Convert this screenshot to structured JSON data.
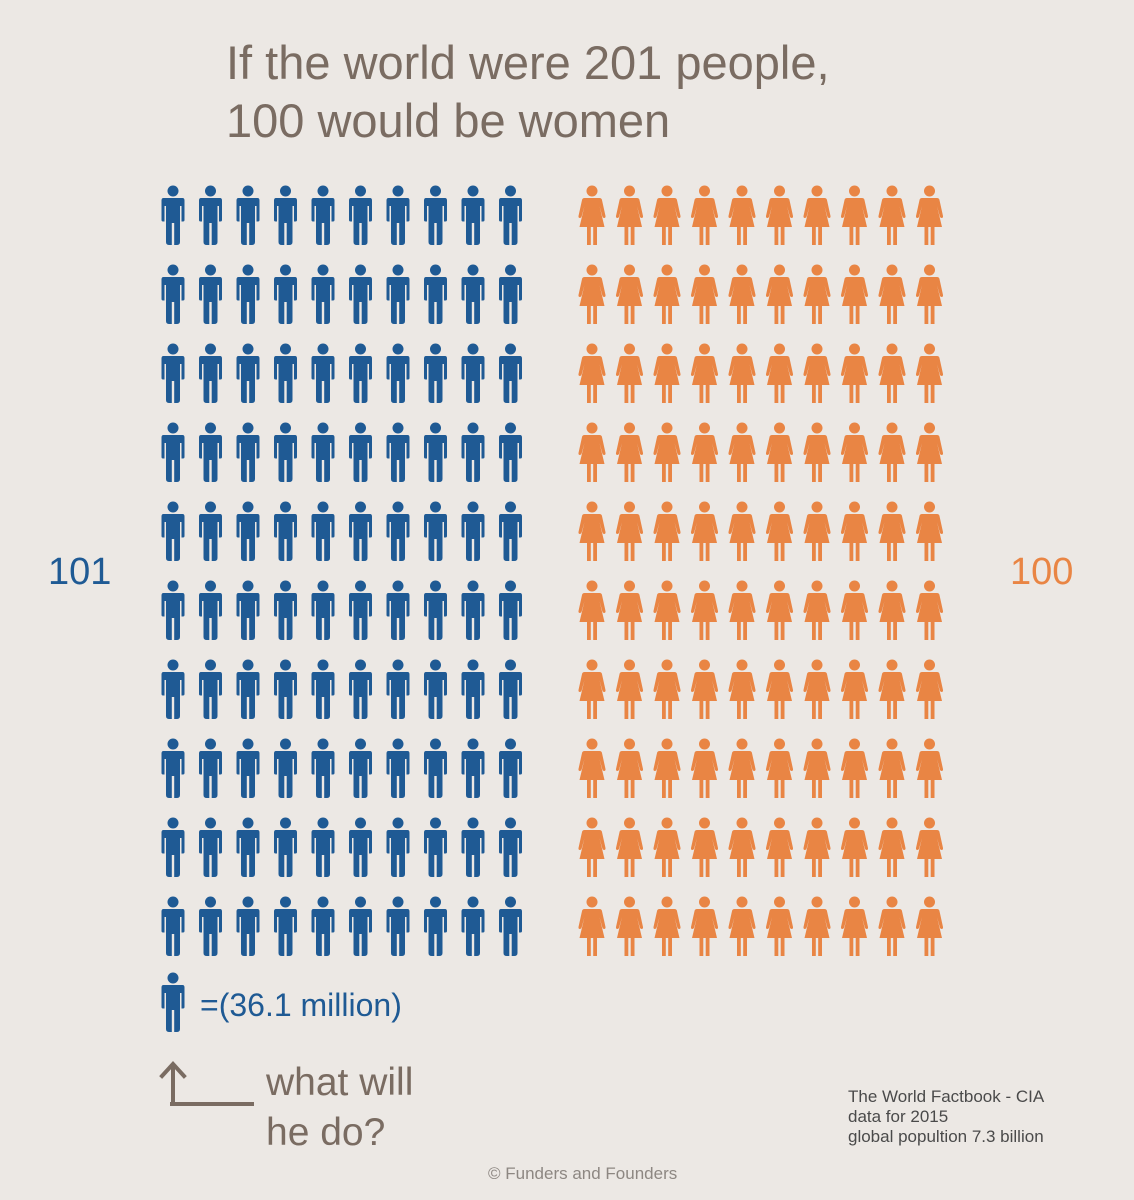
{
  "title": "If the world were 201 people,\n100 would be women",
  "men_count_label": "101",
  "women_count_label": "100",
  "unit_label": "=(36.1 million)",
  "question": "what will\nhe do?",
  "source_text": "The World Factbook - CIA\ndata for 2015\nglobal popultion 7.3 billion",
  "copyright": "© Funders and Founders",
  "colors": {
    "men": "#1f5a94",
    "women": "#e98544",
    "arrow": "#7a6c62"
  },
  "icons": {
    "men": "male-person-icon",
    "women": "female-person-icon",
    "arrow": "arrow-up-left-icon"
  },
  "grid": {
    "men_columns": 10,
    "men_rows": 10,
    "women_columns": 10,
    "women_rows": 10
  }
}
